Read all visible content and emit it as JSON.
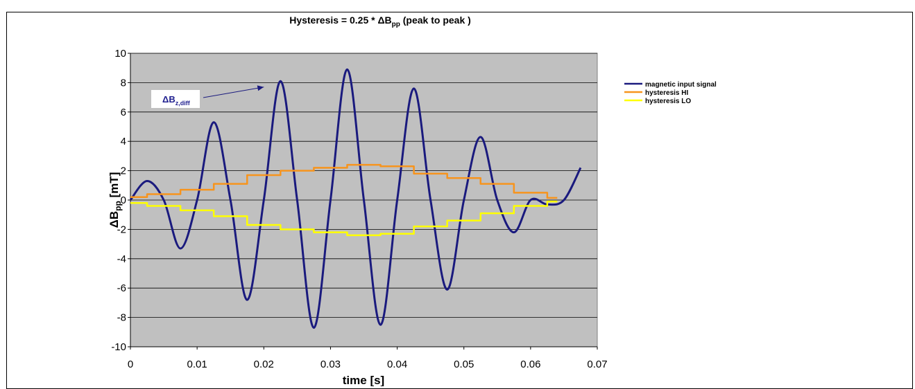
{
  "chart_data": {
    "type": "line",
    "title_main": "Hysteresis  = 0.25 * ",
    "title_delta": "ΔB",
    "title_sub": "pp",
    "title_rest": " (peak to peak )",
    "xlabel": "time [s]",
    "ylabel_main": "ΔB",
    "ylabel_sub": "pp",
    "ylabel_unit": " [mT]",
    "xlim": [
      0,
      0.07
    ],
    "ylim": [
      -10,
      10
    ],
    "x_ticks": [
      0,
      0.01,
      0.02,
      0.03,
      0.04,
      0.05,
      0.06,
      0.07
    ],
    "x_tick_labels": [
      "0",
      "0.01",
      "0.02",
      "0.03",
      "0.04",
      "0.05",
      "0.06",
      "0.07"
    ],
    "y_ticks": [
      -10,
      -8,
      -6,
      -4,
      -2,
      0,
      2,
      4,
      6,
      8,
      10
    ],
    "y_tick_labels": [
      "-10",
      "-8",
      "-6",
      "-4",
      "-2",
      "0",
      "2",
      "4",
      "6",
      "8",
      "10"
    ],
    "grid": "horizontal",
    "plot_background": "#c0c0c0",
    "legend_position": "right",
    "annotation": {
      "main": "ΔB",
      "sub": "z,diff",
      "x": 0.02,
      "y": 7.7
    },
    "series": [
      {
        "name": "magnetic input signal",
        "color": "#1a1a7e",
        "x": [
          0,
          0.0025,
          0.005,
          0.0075,
          0.01,
          0.0125,
          0.015,
          0.0175,
          0.02,
          0.0225,
          0.025,
          0.0275,
          0.03,
          0.0325,
          0.035,
          0.0375,
          0.04,
          0.0425,
          0.045,
          0.0475,
          0.05,
          0.0525,
          0.055,
          0.0575,
          0.06,
          0.0625,
          0.065,
          0.0675
        ],
        "y": [
          0,
          1.3,
          0,
          -3.3,
          0,
          5.3,
          0,
          -6.8,
          0,
          8.1,
          0,
          -8.7,
          0,
          8.9,
          0,
          -8.5,
          0,
          7.6,
          0,
          -6.1,
          0,
          4.3,
          0,
          -2.2,
          0,
          -0.3,
          0,
          2.2
        ]
      },
      {
        "name": "hysteresis HI",
        "color": "#f7941d",
        "x": [
          0,
          0.0025,
          0.0075,
          0.0125,
          0.0175,
          0.0225,
          0.0275,
          0.0325,
          0.0375,
          0.0425,
          0.0475,
          0.0525,
          0.0575,
          0.0625,
          0.064
        ],
        "y": [
          0.2,
          0.4,
          0.7,
          1.1,
          1.7,
          2.0,
          2.2,
          2.4,
          2.3,
          1.8,
          1.5,
          1.1,
          0.5,
          0.15,
          0.15
        ]
      },
      {
        "name": "hysteresis LO",
        "color": "#ffff00",
        "x": [
          0,
          0.0025,
          0.0075,
          0.0125,
          0.0175,
          0.0225,
          0.0275,
          0.0325,
          0.0375,
          0.0425,
          0.0475,
          0.0525,
          0.0575,
          0.0625,
          0.064
        ],
        "y": [
          -0.2,
          -0.4,
          -0.7,
          -1.1,
          -1.7,
          -2.0,
          -2.2,
          -2.4,
          -2.3,
          -1.8,
          -1.4,
          -0.9,
          -0.4,
          -0.1,
          -0.1
        ]
      }
    ]
  }
}
